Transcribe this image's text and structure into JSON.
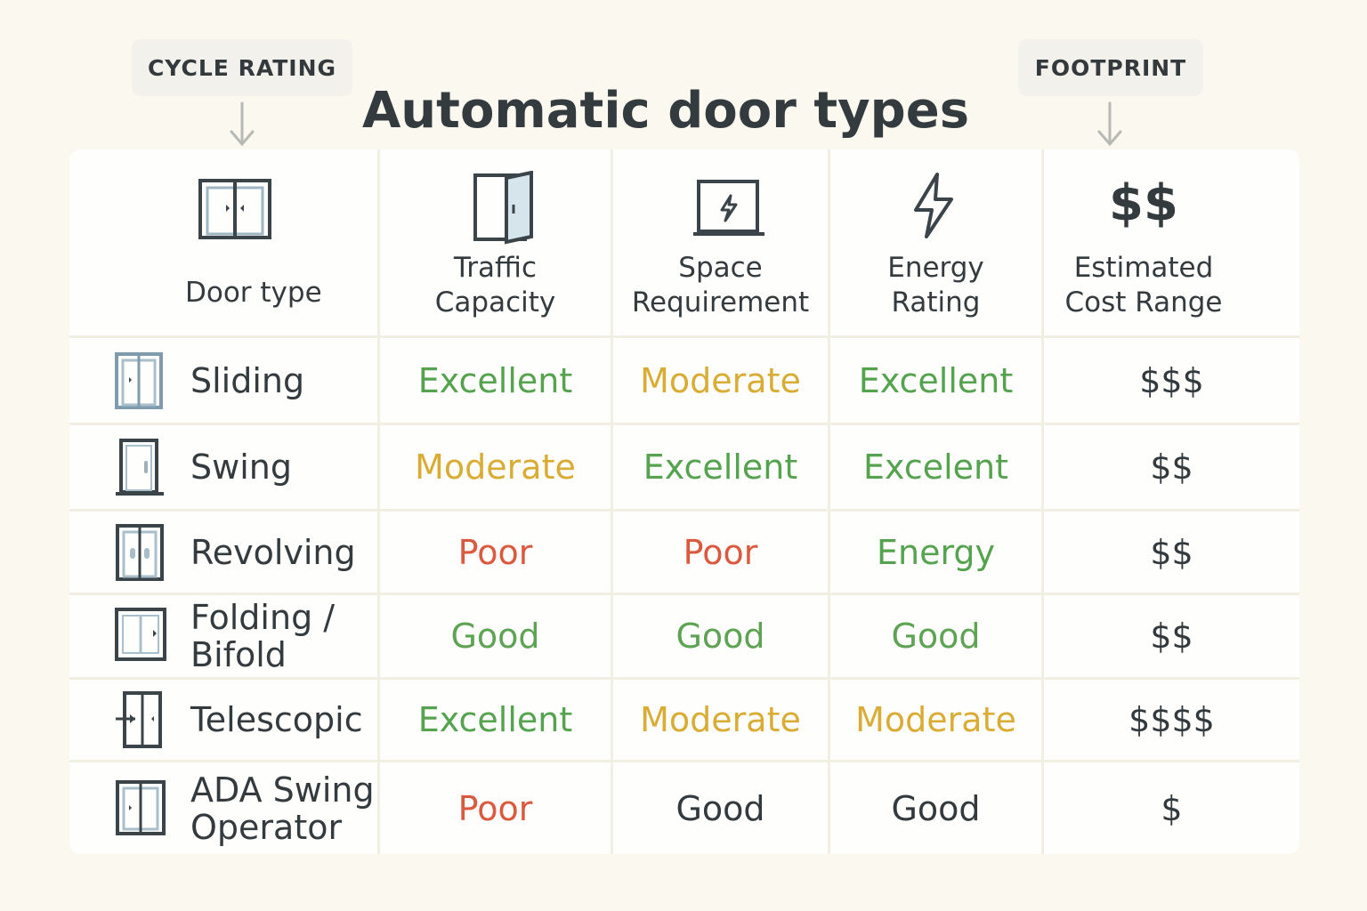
{
  "tags": {
    "left": "CYCLE RATING",
    "right": "FOOTPRINT"
  },
  "title": "Automatic door types",
  "headers": [
    {
      "label": "Door type",
      "icon": "sliding-door-icon"
    },
    {
      "label": "Traffic\nCapacity",
      "icon": "open-door-icon"
    },
    {
      "label": "Space\nRequirement",
      "icon": "framed-bolt-icon"
    },
    {
      "label": "Energy\nRating",
      "icon": "lightning-bolt-icon"
    },
    {
      "label": "Estimated\nCost Range",
      "icon": "dollar-sign-icon",
      "glyph": "$$"
    }
  ],
  "rows": [
    {
      "name": "Sliding",
      "icon": "sliding-door-icon",
      "traffic": "Excellent",
      "space": "Moderate",
      "energy": "Excellent",
      "cost": "$$$"
    },
    {
      "name": "Swing",
      "icon": "swing-door-icon",
      "traffic": "Moderate",
      "space": "Excellent",
      "energy": "Excelent",
      "cost": "$$"
    },
    {
      "name": "Revolving",
      "icon": "revolving-door-icon",
      "traffic": "Poor",
      "space": "Poor",
      "energy": "Energy",
      "cost": "$$"
    },
    {
      "name": "Folding /\nBifold",
      "icon": "folding-door-icon",
      "traffic": "Good",
      "space": "Good",
      "energy": "Good",
      "cost": "$$"
    },
    {
      "name": "Telescopic",
      "icon": "telescopic-door-icon",
      "traffic": "Excellent",
      "space": "Moderate",
      "energy": "Moderate",
      "cost": "$$$$"
    },
    {
      "name": "ADA Swing\nOperator",
      "icon": "ada-door-icon",
      "traffic": "Poor",
      "space": "Good",
      "energy": "Good",
      "cost": "$"
    }
  ],
  "colors": {
    "excellent": "#55a24f",
    "moderate": "#d9ac35",
    "poor": "#db5a3f",
    "good": "#5ea354",
    "neutral": "#333a3e",
    "background": "#fbf8ef"
  }
}
